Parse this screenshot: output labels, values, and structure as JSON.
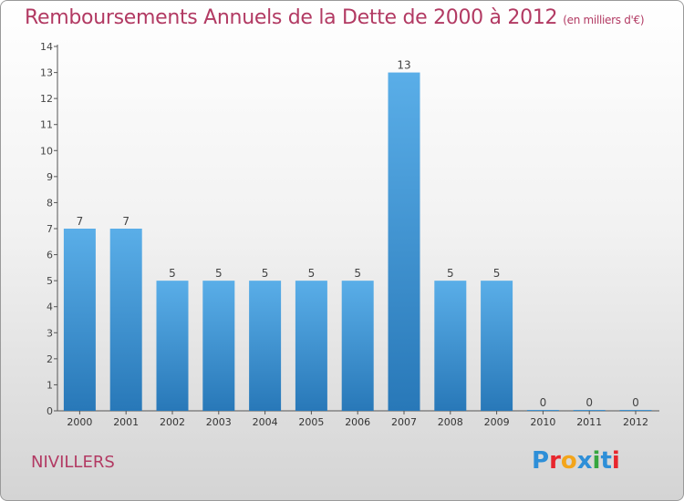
{
  "header": {
    "title": "Remboursements Annuels de la Dette de 2000 à 2012",
    "subtitle": "(en milliers d'€)"
  },
  "commune": "NIVILLERS",
  "brand": {
    "text": "Proxiti",
    "colors": [
      "#2e8fd8",
      "#e8262d",
      "#f3a51b",
      "#2e8fd8",
      "#36a63e",
      "#2e8fd8",
      "#e8262d"
    ]
  },
  "chart_data": {
    "type": "bar",
    "categories": [
      "2000",
      "2001",
      "2002",
      "2003",
      "2004",
      "2005",
      "2006",
      "2007",
      "2008",
      "2009",
      "2010",
      "2011",
      "2012"
    ],
    "values": [
      7,
      7,
      5,
      5,
      5,
      5,
      5,
      13,
      5,
      5,
      0,
      0,
      0
    ],
    "ylim": [
      0,
      14
    ],
    "yticks": [
      0,
      1,
      2,
      3,
      4,
      5,
      6,
      7,
      8,
      9,
      10,
      11,
      12,
      13,
      14
    ],
    "title": "Remboursements Annuels de la Dette de 2000 à 2012",
    "subtitle": "(en milliers d'€)",
    "grid": false,
    "bar_color_top": "#5aaee8",
    "bar_color_bottom": "#2878b8"
  }
}
